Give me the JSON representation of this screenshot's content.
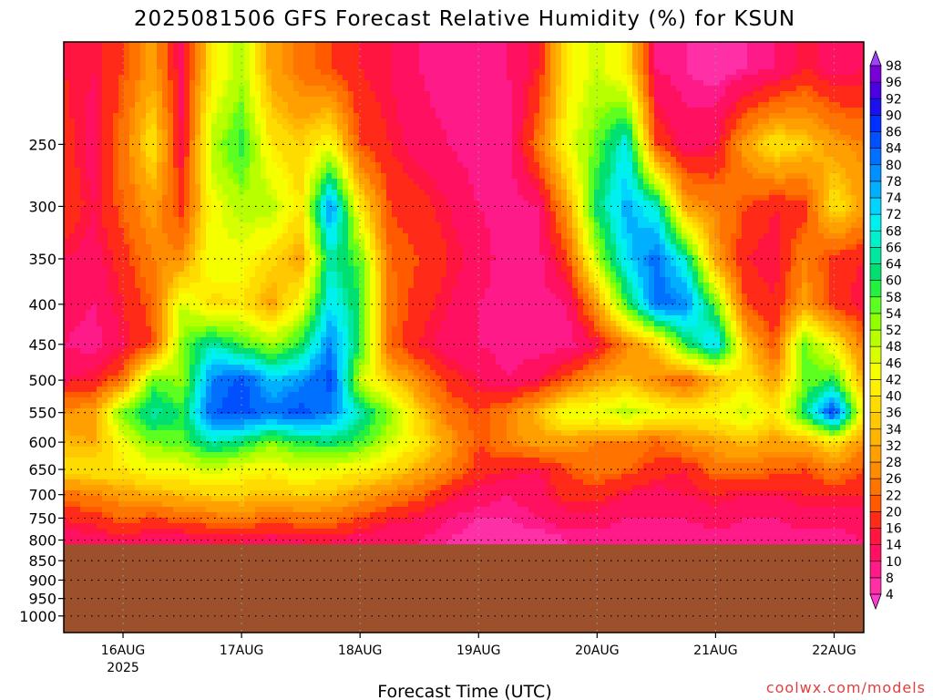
{
  "chart_data": {
    "type": "heatmap",
    "title": "2025081506 GFS Forecast Relative Humidity (%) for KSUN",
    "xlabel": "Forecast Time (UTC)",
    "ylabel": "",
    "credit": "coolwx.com/models",
    "y_scale": "log",
    "y_inverted": true,
    "ylim_hpa": [
      1050,
      185
    ],
    "xlim_hours": [
      6,
      168
    ],
    "y_ticks": [
      250,
      300,
      350,
      400,
      450,
      500,
      550,
      600,
      650,
      700,
      750,
      800,
      850,
      900,
      950,
      1000
    ],
    "x_ticks": [
      {
        "label": "16AUG",
        "sublabel": "2025",
        "hour": 18
      },
      {
        "label": "17AUG",
        "sublabel": "",
        "hour": 42
      },
      {
        "label": "18AUG",
        "sublabel": "",
        "hour": 66
      },
      {
        "label": "19AUG",
        "sublabel": "",
        "hour": 90
      },
      {
        "label": "20AUG",
        "sublabel": "",
        "hour": 114
      },
      {
        "label": "21AUG",
        "sublabel": "",
        "hour": 138
      },
      {
        "label": "22AUG",
        "sublabel": "",
        "hour": 162
      }
    ],
    "grid": true,
    "terrain": {
      "surface_pressure_hpa": 810,
      "color": "#9c502c"
    },
    "colorbar": {
      "levels": [
        4,
        8,
        10,
        14,
        16,
        20,
        22,
        26,
        28,
        32,
        34,
        36,
        40,
        42,
        46,
        48,
        52,
        54,
        58,
        60,
        64,
        66,
        68,
        72,
        74,
        78,
        80,
        84,
        86,
        90,
        92,
        96,
        98
      ],
      "colors": [
        "#ff3ccd",
        "#ff2fa6",
        "#ff1a8a",
        "#ff1060",
        "#ff1540",
        "#ff2a18",
        "#ff5a00",
        "#ff7400",
        "#ff8c00",
        "#ffa000",
        "#ffb400",
        "#ffc800",
        "#ffdc00",
        "#fff000",
        "#f5ff00",
        "#d8ff00",
        "#b8ff00",
        "#90ff00",
        "#5cff20",
        "#24f040",
        "#00e070",
        "#00e8a0",
        "#00f0cc",
        "#00f0f0",
        "#00d4ff",
        "#00b0ff",
        "#0090ff",
        "#0070ff",
        "#0050ff",
        "#0030ff",
        "#1a10f0",
        "#4a00e0",
        "#7a00d8",
        "#a040ff"
      ]
    },
    "grid_hours": [
      6,
      12,
      18,
      24,
      30,
      36,
      42,
      48,
      54,
      60,
      66,
      72,
      78,
      84,
      90,
      96,
      102,
      108,
      114,
      120,
      126,
      132,
      138,
      144,
      150,
      156,
      162,
      168
    ],
    "grid_pressures_hpa": [
      200,
      250,
      300,
      350,
      400,
      450,
      500,
      550,
      600,
      650,
      700,
      750,
      800
    ],
    "rh_percent": [
      [
        16,
        14,
        20,
        30,
        12,
        40,
        50,
        30,
        24,
        20,
        16,
        14,
        10,
        8,
        8,
        10,
        16,
        40,
        48,
        40,
        10,
        8,
        6,
        8,
        10,
        16,
        12,
        14
      ],
      [
        18,
        12,
        24,
        40,
        14,
        50,
        60,
        40,
        36,
        44,
        20,
        16,
        12,
        10,
        8,
        8,
        24,
        44,
        56,
        70,
        20,
        12,
        14,
        30,
        40,
        36,
        30,
        26
      ],
      [
        20,
        14,
        22,
        30,
        18,
        44,
        50,
        50,
        40,
        80,
        40,
        20,
        18,
        14,
        10,
        8,
        10,
        30,
        62,
        76,
        68,
        30,
        26,
        20,
        16,
        18,
        40,
        30
      ],
      [
        14,
        12,
        18,
        26,
        28,
        46,
        44,
        38,
        30,
        66,
        56,
        22,
        20,
        16,
        12,
        8,
        8,
        20,
        50,
        72,
        82,
        66,
        30,
        16,
        14,
        26,
        18,
        16
      ],
      [
        12,
        10,
        16,
        22,
        48,
        38,
        40,
        30,
        44,
        72,
        60,
        24,
        18,
        14,
        10,
        8,
        8,
        10,
        30,
        58,
        82,
        80,
        56,
        20,
        16,
        30,
        18,
        14
      ],
      [
        10,
        8,
        14,
        20,
        54,
        66,
        58,
        52,
        60,
        80,
        60,
        22,
        16,
        12,
        10,
        8,
        8,
        8,
        14,
        26,
        36,
        60,
        74,
        36,
        20,
        56,
        42,
        24
      ],
      [
        14,
        16,
        24,
        56,
        52,
        80,
        86,
        74,
        78,
        86,
        48,
        36,
        26,
        18,
        14,
        10,
        14,
        22,
        30,
        34,
        26,
        22,
        32,
        40,
        30,
        54,
        60,
        30
      ],
      [
        28,
        30,
        56,
        66,
        60,
        84,
        86,
        82,
        86,
        80,
        66,
        54,
        36,
        24,
        20,
        26,
        34,
        46,
        46,
        50,
        46,
        42,
        44,
        48,
        40,
        62,
        88,
        40
      ],
      [
        34,
        32,
        44,
        54,
        56,
        66,
        62,
        54,
        60,
        62,
        58,
        48,
        40,
        30,
        20,
        26,
        30,
        30,
        26,
        26,
        22,
        28,
        30,
        34,
        30,
        32,
        40,
        28
      ],
      [
        38,
        40,
        40,
        44,
        44,
        48,
        44,
        42,
        46,
        44,
        42,
        38,
        32,
        26,
        18,
        16,
        14,
        20,
        24,
        22,
        18,
        16,
        24,
        24,
        22,
        20,
        26,
        20
      ],
      [
        24,
        26,
        30,
        32,
        34,
        36,
        36,
        34,
        36,
        34,
        30,
        26,
        22,
        16,
        12,
        10,
        12,
        18,
        18,
        14,
        12,
        14,
        16,
        14,
        14,
        16,
        16,
        16
      ],
      [
        16,
        18,
        22,
        20,
        22,
        24,
        26,
        22,
        24,
        24,
        20,
        16,
        14,
        10,
        8,
        8,
        10,
        12,
        12,
        10,
        10,
        10,
        12,
        10,
        10,
        12,
        12,
        12
      ],
      [
        12,
        12,
        14,
        12,
        12,
        14,
        14,
        12,
        14,
        14,
        12,
        10,
        10,
        8,
        6,
        6,
        6,
        8,
        8,
        8,
        8,
        8,
        8,
        8,
        8,
        8,
        8,
        10
      ]
    ]
  }
}
